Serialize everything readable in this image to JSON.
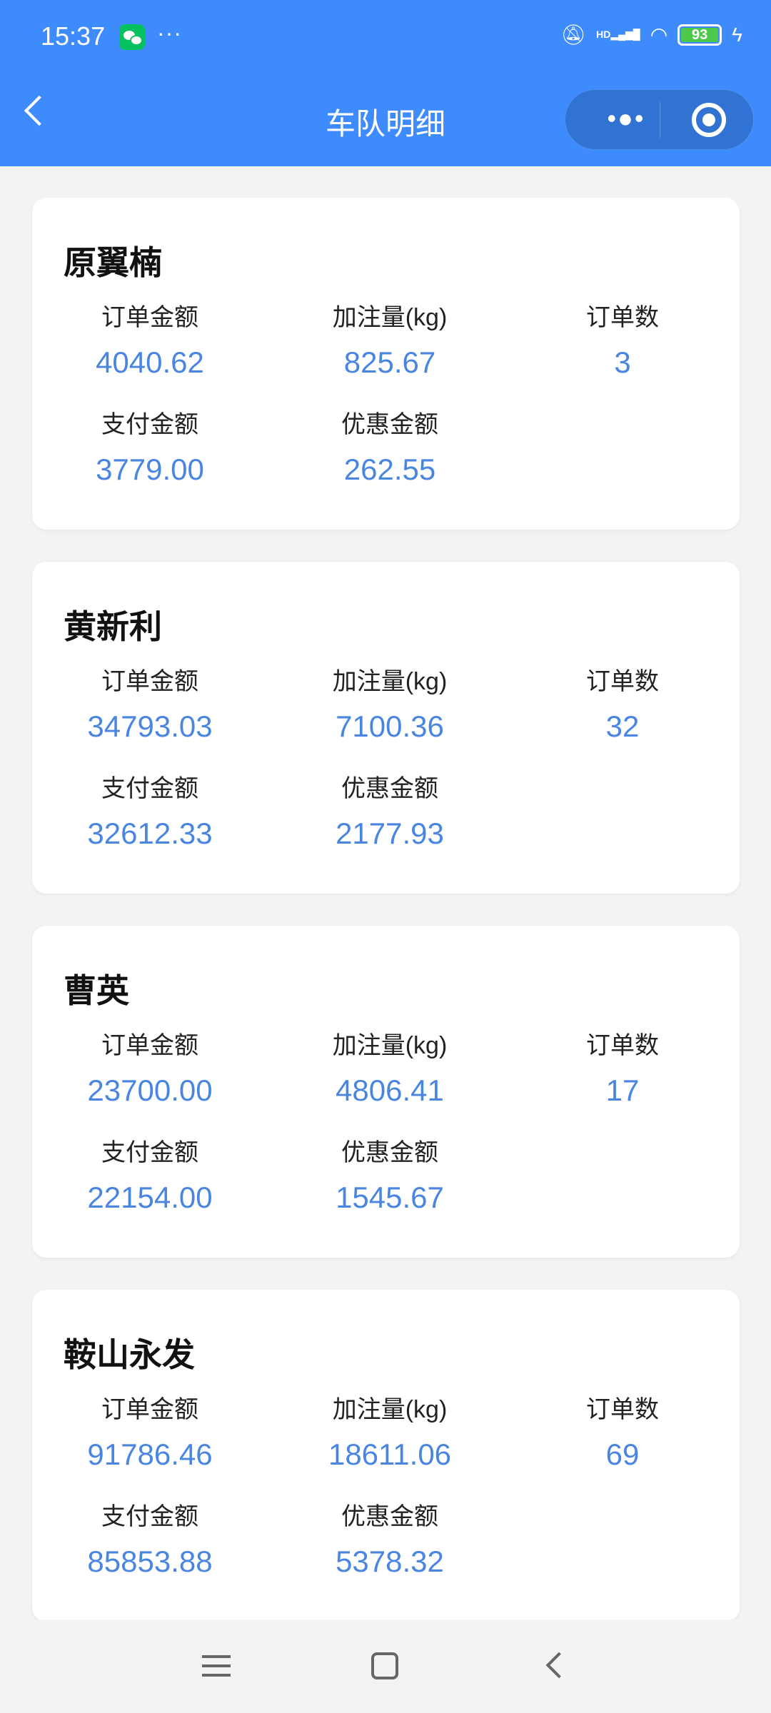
{
  "status_bar": {
    "time": "15:37",
    "notification_dots": "···",
    "battery": "93",
    "signal_label": "HD"
  },
  "header": {
    "title": "车队明细",
    "more_label": "•●•"
  },
  "labels": {
    "order_amount": "订单金额",
    "fuel_volume": "加注量(kg)",
    "order_count": "订单数",
    "paid_amount": "支付金额",
    "discount_amount": "优惠金额"
  },
  "fleets": [
    {
      "name": "原翼楠",
      "order_amount": "4040.62",
      "fuel_volume": "825.67",
      "order_count": "3",
      "paid_amount": "3779.00",
      "discount_amount": "262.55"
    },
    {
      "name": "黄新利",
      "order_amount": "34793.03",
      "fuel_volume": "7100.36",
      "order_count": "32",
      "paid_amount": "32612.33",
      "discount_amount": "2177.93"
    },
    {
      "name": "曹英",
      "order_amount": "23700.00",
      "fuel_volume": "4806.41",
      "order_count": "17",
      "paid_amount": "22154.00",
      "discount_amount": "1545.67"
    },
    {
      "name": "鞍山永发",
      "order_amount": "91786.46",
      "fuel_volume": "18611.06",
      "order_count": "69",
      "paid_amount": "85853.88",
      "discount_amount": "5378.32"
    }
  ],
  "colors": {
    "header": "#3d8bfd",
    "value": "#4a86e0",
    "background": "#f3f3f3"
  }
}
